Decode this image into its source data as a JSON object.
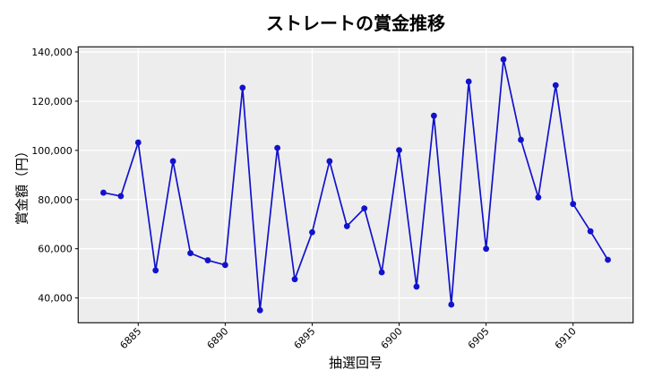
{
  "chart_data": {
    "type": "line",
    "title": "ストレートの賞金推移",
    "xlabel": "抽選回号",
    "ylabel": "賞金額（円）",
    "x": [
      6883,
      6884,
      6885,
      6886,
      6887,
      6888,
      6889,
      6890,
      6891,
      6892,
      6893,
      6894,
      6895,
      6896,
      6897,
      6898,
      6899,
      6900,
      6901,
      6902,
      6903,
      6904,
      6905,
      6906,
      6907,
      6908,
      6909,
      6910,
      6911,
      6912
    ],
    "values": [
      82800,
      81400,
      103200,
      51200,
      95600,
      58200,
      55300,
      53400,
      125500,
      35000,
      101000,
      47600,
      66700,
      95600,
      69200,
      76400,
      50400,
      100100,
      44600,
      114100,
      37300,
      128000,
      60000,
      137000,
      104300,
      80900,
      126500,
      78200,
      67100,
      55500
    ],
    "xticks": [
      6885,
      6890,
      6895,
      6900,
      6905,
      6910
    ],
    "yticks": [
      40000,
      60000,
      80000,
      100000,
      120000,
      140000
    ],
    "xlim": [
      6881.55,
      6913.45
    ],
    "ylim": [
      29900,
      142100
    ],
    "grid": true,
    "legend_position": "none",
    "line_color": "#1212cc",
    "marker": "circle",
    "plot_bg": "#ededed",
    "grid_color": "#ffffff",
    "spine_color": "#1a1a1a"
  }
}
